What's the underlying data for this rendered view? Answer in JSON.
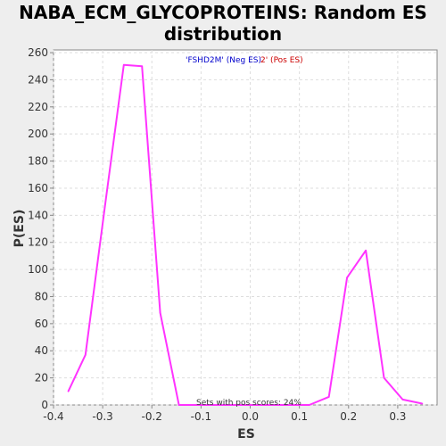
{
  "chart_data": {
    "type": "line",
    "title": "NABA_ECM_GLYCOPROTEINS: Random ES distribution",
    "xlabel": "ES",
    "ylabel": "P(ES)",
    "xlim": [
      -0.4,
      0.38
    ],
    "ylim": [
      0,
      262
    ],
    "x_ticks": [
      "-0.4",
      "-0.3",
      "-0.2",
      "-0.1",
      "0.0",
      "0.1",
      "0.2",
      "0.3"
    ],
    "y_ticks": [
      "0",
      "20",
      "40",
      "60",
      "80",
      "100",
      "120",
      "140",
      "160",
      "180",
      "200",
      "220",
      "240",
      "260"
    ],
    "grid": true,
    "series": [
      {
        "color": "#ff33ff",
        "points": [
          [
            -0.37,
            10
          ],
          [
            -0.335,
            37
          ],
          [
            -0.295,
            148
          ],
          [
            -0.257,
            251
          ],
          [
            -0.22,
            250
          ],
          [
            -0.183,
            68
          ],
          [
            -0.145,
            0
          ],
          [
            -0.11,
            0
          ],
          [
            -0.072,
            0
          ],
          [
            -0.035,
            0
          ],
          [
            0.0,
            0
          ],
          [
            0.04,
            0
          ],
          [
            0.08,
            0
          ],
          [
            0.12,
            0
          ],
          [
            0.16,
            6
          ],
          [
            0.197,
            94
          ],
          [
            0.235,
            114
          ],
          [
            0.272,
            20
          ],
          [
            0.31,
            4
          ],
          [
            0.35,
            1
          ]
        ]
      }
    ],
    "annotations": {
      "neg_text": "'FSHD2M' (Neg ES)",
      "pos_text": "2' (Pos ES)",
      "neg_color": "#0000cc",
      "pos_color": "#cc0000",
      "sets_text": "Sets with pos scores: 24%"
    }
  }
}
